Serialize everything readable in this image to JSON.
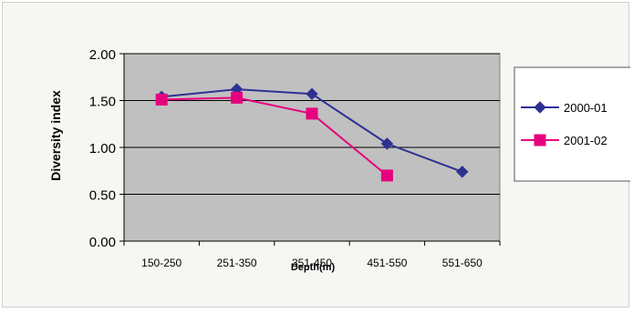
{
  "chart_data": {
    "type": "line",
    "categories": [
      "150-250",
      "251-350",
      "351-450",
      "451-550",
      "551-650"
    ],
    "series": [
      {
        "name": "2000-01",
        "values": [
          1.54,
          1.62,
          1.57,
          1.04,
          0.74
        ],
        "color": "#2e3192",
        "marker": "diamond"
      },
      {
        "name": "2001-02",
        "values": [
          1.51,
          1.53,
          1.36,
          0.7,
          null
        ],
        "color": "#e6007e",
        "marker": "square"
      }
    ],
    "xlabel": "Depth(m)",
    "ylabel": "Diversity index",
    "ylim": [
      0,
      2
    ],
    "yticks": [
      "0.00",
      "0.50",
      "1.00",
      "1.50",
      "2.00"
    ],
    "grid": true,
    "legend": "right",
    "plot_bg": "#c0c0c0"
  }
}
